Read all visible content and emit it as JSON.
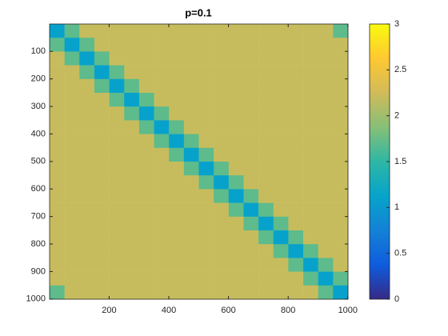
{
  "chart_data": {
    "type": "heatmap",
    "title": "p=0.1",
    "xlim": [
      0.5,
      1000.5
    ],
    "ylim": [
      0.5,
      1000.5
    ],
    "y_reversed": true,
    "xticks": [
      200,
      400,
      600,
      800,
      1000
    ],
    "yticks": [
      100,
      200,
      300,
      400,
      500,
      600,
      700,
      800,
      900,
      1000
    ],
    "clim": [
      0,
      3
    ],
    "cticks": [
      0,
      0.5,
      1,
      1.5,
      2,
      2.5,
      3
    ],
    "colormap": [
      "#352a87",
      "#0f5cdd",
      "#1481d6",
      "#06a4ca",
      "#2eb7a4",
      "#87bf77",
      "#d1bb59",
      "#fec832",
      "#f9fb0e"
    ],
    "z": [
      [
        1.1,
        1.7,
        2.2,
        2.2,
        2.2,
        2.2,
        2.2,
        2.2,
        2.2,
        2.2,
        2.2,
        2.2,
        2.2,
        2.2,
        2.2,
        2.2,
        2.2,
        2.2,
        2.2,
        1.7
      ],
      [
        1.7,
        1.1,
        1.7,
        2.2,
        2.2,
        2.2,
        2.2,
        2.2,
        2.2,
        2.2,
        2.2,
        2.2,
        2.2,
        2.2,
        2.2,
        2.2,
        2.2,
        2.2,
        2.2,
        2.2
      ],
      [
        2.2,
        1.7,
        1.1,
        1.7,
        2.2,
        2.2,
        2.2,
        2.2,
        2.2,
        2.2,
        2.2,
        2.2,
        2.2,
        2.2,
        2.2,
        2.2,
        2.2,
        2.2,
        2.2,
        2.2
      ],
      [
        2.2,
        2.2,
        1.7,
        1.1,
        1.7,
        2.2,
        2.2,
        2.2,
        2.2,
        2.2,
        2.2,
        2.2,
        2.2,
        2.2,
        2.2,
        2.2,
        2.2,
        2.2,
        2.2,
        2.2
      ],
      [
        2.2,
        2.2,
        2.2,
        1.7,
        1.1,
        1.7,
        2.2,
        2.2,
        2.2,
        2.2,
        2.2,
        2.2,
        2.2,
        2.2,
        2.2,
        2.2,
        2.2,
        2.2,
        2.2,
        2.2
      ],
      [
        2.2,
        2.2,
        2.2,
        2.2,
        1.7,
        1.1,
        1.7,
        2.2,
        2.2,
        2.2,
        2.2,
        2.2,
        2.2,
        2.2,
        2.2,
        2.2,
        2.2,
        2.2,
        2.2,
        2.2
      ],
      [
        2.2,
        2.2,
        2.2,
        2.2,
        2.2,
        1.7,
        1.1,
        1.7,
        2.2,
        2.2,
        2.2,
        2.2,
        2.2,
        2.2,
        2.2,
        2.2,
        2.2,
        2.2,
        2.2,
        2.2
      ],
      [
        2.2,
        2.2,
        2.2,
        2.2,
        2.2,
        2.2,
        1.7,
        1.1,
        1.7,
        2.2,
        2.2,
        2.2,
        2.2,
        2.2,
        2.2,
        2.2,
        2.2,
        2.2,
        2.2,
        2.2
      ],
      [
        2.2,
        2.2,
        2.2,
        2.2,
        2.2,
        2.2,
        2.2,
        1.7,
        1.1,
        1.7,
        2.2,
        2.2,
        2.2,
        2.2,
        2.2,
        2.2,
        2.2,
        2.2,
        2.2,
        2.2
      ],
      [
        2.2,
        2.2,
        2.2,
        2.2,
        2.2,
        2.2,
        2.2,
        2.2,
        1.7,
        1.1,
        1.7,
        2.2,
        2.2,
        2.2,
        2.2,
        2.2,
        2.2,
        2.2,
        2.2,
        2.2
      ],
      [
        2.2,
        2.2,
        2.2,
        2.2,
        2.2,
        2.2,
        2.2,
        2.2,
        2.2,
        1.7,
        1.1,
        1.7,
        2.2,
        2.2,
        2.2,
        2.2,
        2.2,
        2.2,
        2.2,
        2.2
      ],
      [
        2.2,
        2.2,
        2.2,
        2.2,
        2.2,
        2.2,
        2.2,
        2.2,
        2.2,
        2.2,
        1.7,
        1.1,
        1.7,
        2.2,
        2.2,
        2.2,
        2.2,
        2.2,
        2.2,
        2.2
      ],
      [
        2.2,
        2.2,
        2.2,
        2.2,
        2.2,
        2.2,
        2.2,
        2.2,
        2.2,
        2.2,
        2.2,
        1.7,
        1.1,
        1.7,
        2.2,
        2.2,
        2.2,
        2.2,
        2.2,
        2.2
      ],
      [
        2.2,
        2.2,
        2.2,
        2.2,
        2.2,
        2.2,
        2.2,
        2.2,
        2.2,
        2.2,
        2.2,
        2.2,
        1.7,
        1.1,
        1.7,
        2.2,
        2.2,
        2.2,
        2.2,
        2.2
      ],
      [
        2.2,
        2.2,
        2.2,
        2.2,
        2.2,
        2.2,
        2.2,
        2.2,
        2.2,
        2.2,
        2.2,
        2.2,
        2.2,
        1.7,
        1.1,
        1.7,
        2.2,
        2.2,
        2.2,
        2.2
      ],
      [
        2.2,
        2.2,
        2.2,
        2.2,
        2.2,
        2.2,
        2.2,
        2.2,
        2.2,
        2.2,
        2.2,
        2.2,
        2.2,
        2.2,
        1.7,
        1.1,
        1.7,
        2.2,
        2.2,
        2.2
      ],
      [
        2.2,
        2.2,
        2.2,
        2.2,
        2.2,
        2.2,
        2.2,
        2.2,
        2.2,
        2.2,
        2.2,
        2.2,
        2.2,
        2.2,
        2.2,
        1.7,
        1.1,
        1.7,
        2.2,
        2.2
      ],
      [
        2.2,
        2.2,
        2.2,
        2.2,
        2.2,
        2.2,
        2.2,
        2.2,
        2.2,
        2.2,
        2.2,
        2.2,
        2.2,
        2.2,
        2.2,
        2.2,
        1.7,
        1.1,
        1.7,
        2.2
      ],
      [
        2.2,
        2.2,
        2.2,
        2.2,
        2.2,
        2.2,
        2.2,
        2.2,
        2.2,
        2.2,
        2.2,
        2.2,
        2.2,
        2.2,
        2.2,
        2.2,
        2.2,
        1.7,
        1.1,
        1.7
      ],
      [
        1.7,
        2.2,
        2.2,
        2.2,
        2.2,
        2.2,
        2.2,
        2.2,
        2.2,
        2.2,
        2.2,
        2.2,
        2.2,
        2.2,
        2.2,
        2.2,
        2.2,
        2.2,
        1.7,
        1.1
      ]
    ]
  }
}
